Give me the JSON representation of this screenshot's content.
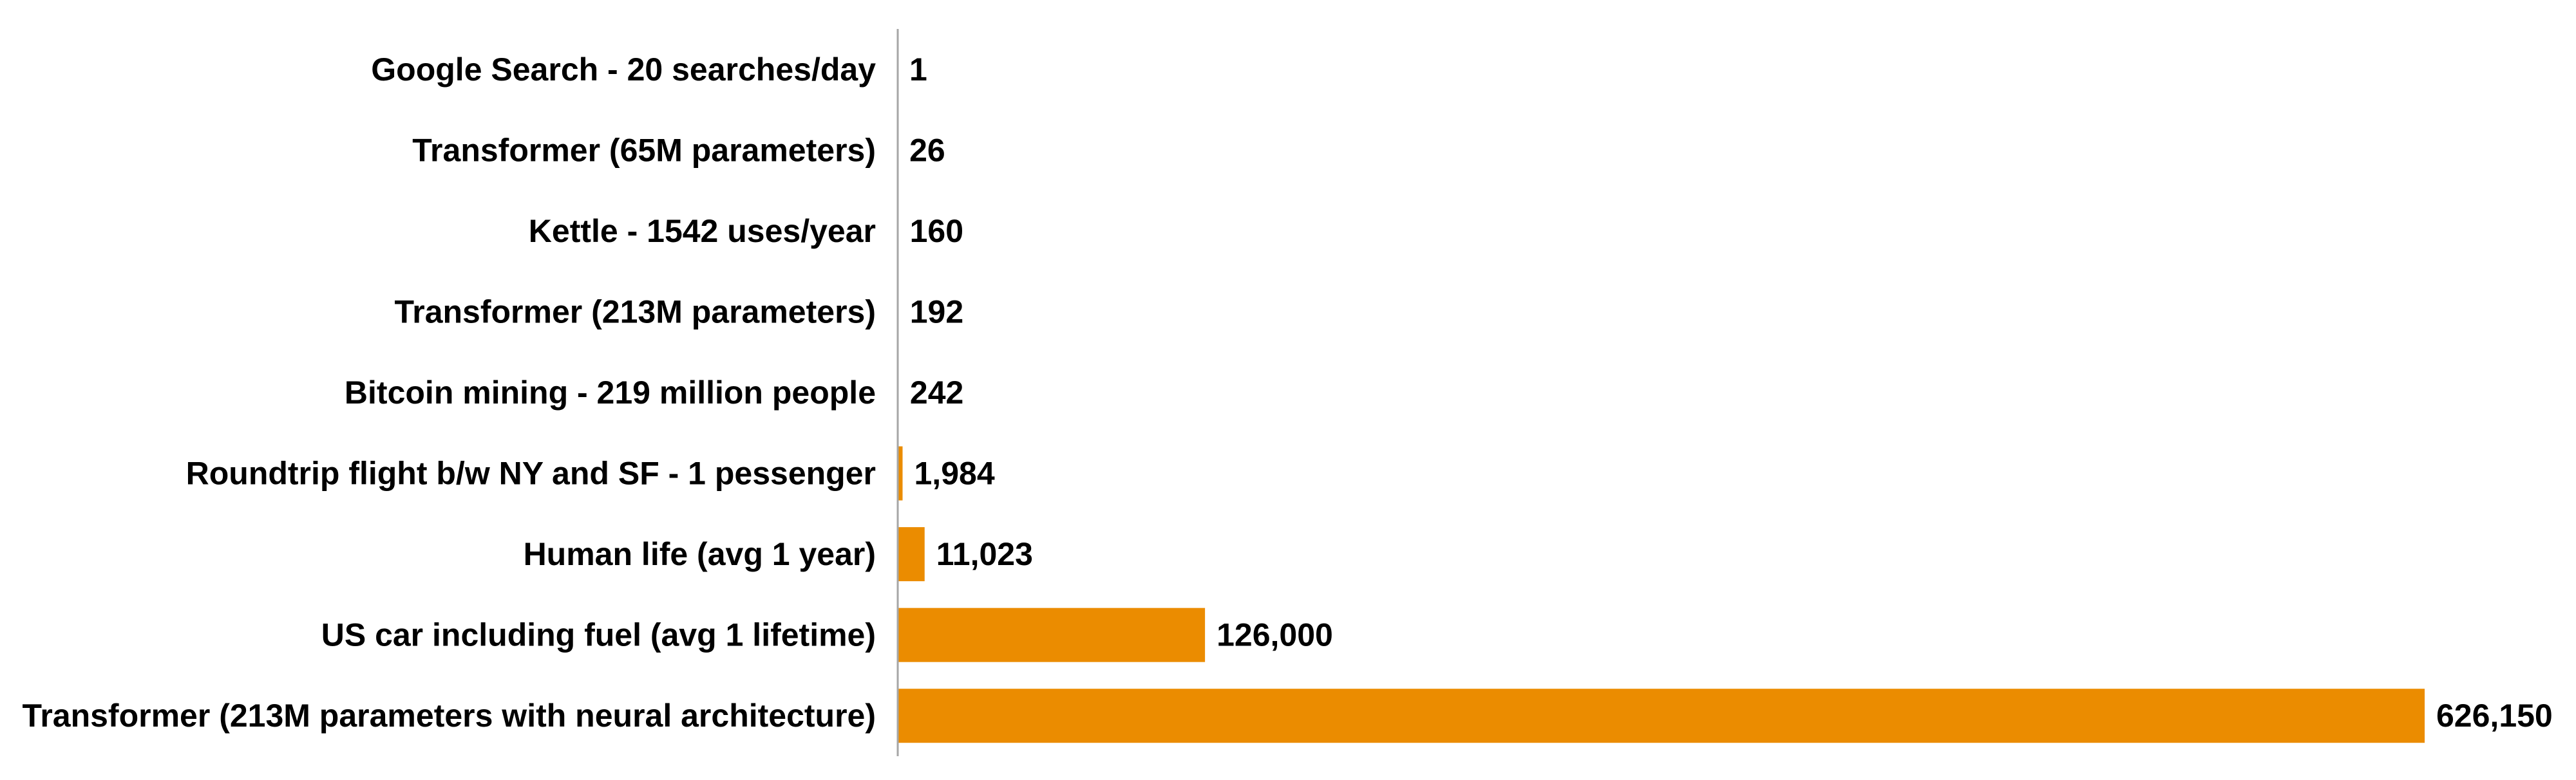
{
  "chart_data": {
    "type": "bar",
    "orientation": "horizontal",
    "categories": [
      "Google Search - 20 searches/day",
      "Transformer (65M parameters)",
      "Kettle - 1542 uses/year",
      "Transformer (213M parameters)",
      "Bitcoin mining - 219 million people",
      "Roundtrip flight b/w NY and SF - 1 pessenger",
      "Human life (avg 1 year)",
      "US car including fuel (avg 1 lifetime)",
      "Transformer (213M parameters with neural architecture)"
    ],
    "values": [
      1,
      26,
      160,
      192,
      242,
      1984,
      11023,
      126000,
      626150
    ],
    "value_labels": [
      "1",
      "26",
      "160",
      "192",
      "242",
      "1,984",
      "11,023",
      "126,000",
      "626,150"
    ],
    "title": "",
    "xlabel": "",
    "ylabel": "",
    "xlim": [
      0,
      650000
    ],
    "grid": false,
    "legend": "none",
    "bar_color": "#EB8C00",
    "axis_color": "#A6A6A6"
  }
}
